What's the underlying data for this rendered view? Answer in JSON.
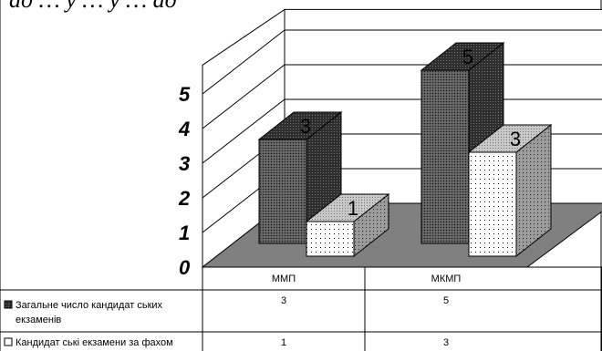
{
  "header_fragment": "ад … у … у … ад",
  "chart_data": {
    "type": "bar",
    "three_d": true,
    "categories": [
      "ММП",
      "МКМП"
    ],
    "series": [
      {
        "name": "Загальне число кандидатських екзаменів",
        "values": [
          3,
          5
        ],
        "color": "#555555"
      },
      {
        "name": "Кандидатські екзамени за фахом",
        "values": [
          1,
          3
        ],
        "color": "#ffffff"
      }
    ],
    "ylim": [
      0,
      5
    ],
    "yticks": [
      0,
      1,
      2,
      3,
      4,
      5
    ],
    "grid": true,
    "floor_color": "#808080",
    "legend": "data-table"
  },
  "table": {
    "row_labels": [
      "Загальне число кандидат ських",
      "екзаменів",
      "Кандидат ські екзамени за фахом"
    ]
  }
}
